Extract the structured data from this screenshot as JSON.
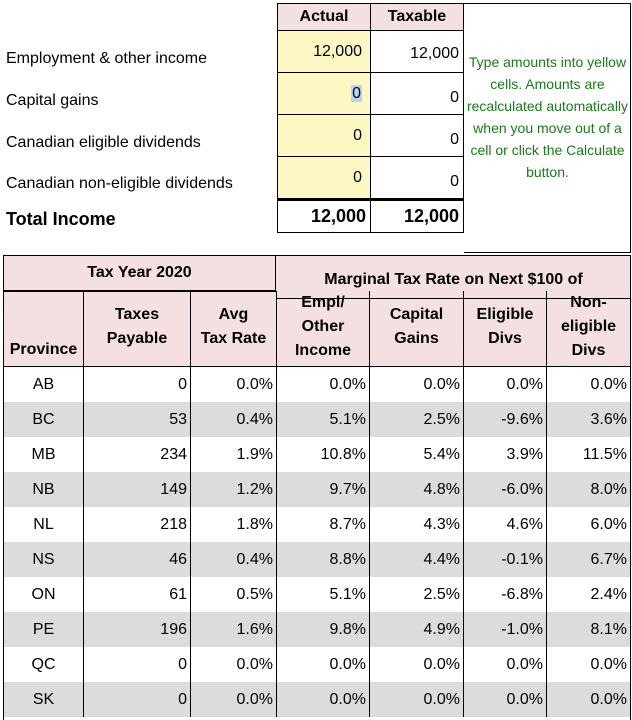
{
  "income": {
    "col_actual": "Actual",
    "col_taxable": "Taxable",
    "rows": [
      {
        "label": "Employment & other income",
        "actual": "12,000",
        "taxable": "12,000"
      },
      {
        "label": "Capital gains",
        "actual": "0",
        "taxable": "0"
      },
      {
        "label": "Canadian eligible dividends",
        "actual": "0",
        "taxable": "0"
      },
      {
        "label": "Canadian non-eligible dividends",
        "actual": "0",
        "taxable": "0"
      }
    ],
    "total_label": "Total Income",
    "total_actual": "12,000",
    "total_taxable": "12,000",
    "note": "Type amounts into yellow cells.  Amounts are recalculated automatically when you move out of a cell or click the Calculate button."
  },
  "table": {
    "tax_year": "Tax Year 2020",
    "marginal_header": "Marginal Tax Rate on Next $100 of",
    "columns": {
      "province": "Province",
      "taxes_payable_1": "Taxes",
      "taxes_payable_2": "Payable",
      "avg_rate_1": "Avg",
      "avg_rate_2": "Tax Rate",
      "empl_1": "Empl/",
      "empl_2": "Other",
      "empl_3": "Income",
      "capgains_1": "Capital",
      "capgains_2": "Gains",
      "elig_1": "Eligible",
      "elig_2": "Divs",
      "nonelig_1": "Non-",
      "nonelig_2": "eligible",
      "nonelig_3": "Divs"
    },
    "rows": [
      {
        "province": "AB",
        "taxes": "0",
        "avg": "0.0%",
        "empl": "0.0%",
        "cap": "0.0%",
        "elig": "0.0%",
        "nonelig": "0.0%"
      },
      {
        "province": "BC",
        "taxes": "53",
        "avg": "0.4%",
        "empl": "5.1%",
        "cap": "2.5%",
        "elig": "-9.6%",
        "nonelig": "3.6%"
      },
      {
        "province": "MB",
        "taxes": "234",
        "avg": "1.9%",
        "empl": "10.8%",
        "cap": "5.4%",
        "elig": "3.9%",
        "nonelig": "11.5%"
      },
      {
        "province": "NB",
        "taxes": "149",
        "avg": "1.2%",
        "empl": "9.7%",
        "cap": "4.8%",
        "elig": "-6.0%",
        "nonelig": "8.0%"
      },
      {
        "province": "NL",
        "taxes": "218",
        "avg": "1.8%",
        "empl": "8.7%",
        "cap": "4.3%",
        "elig": "4.6%",
        "nonelig": "6.0%"
      },
      {
        "province": "NS",
        "taxes": "46",
        "avg": "0.4%",
        "empl": "8.8%",
        "cap": "4.4%",
        "elig": "-0.1%",
        "nonelig": "6.7%"
      },
      {
        "province": "ON",
        "taxes": "61",
        "avg": "0.5%",
        "empl": "5.1%",
        "cap": "2.5%",
        "elig": "-6.8%",
        "nonelig": "2.4%"
      },
      {
        "province": "PE",
        "taxes": "196",
        "avg": "1.6%",
        "empl": "9.8%",
        "cap": "4.9%",
        "elig": "-1.0%",
        "nonelig": "8.1%"
      },
      {
        "province": "QC",
        "taxes": "0",
        "avg": "0.0%",
        "empl": "0.0%",
        "cap": "0.0%",
        "elig": "0.0%",
        "nonelig": "0.0%"
      },
      {
        "province": "SK",
        "taxes": "0",
        "avg": "0.0%",
        "empl": "0.0%",
        "cap": "0.0%",
        "elig": "0.0%",
        "nonelig": "0.0%"
      }
    ]
  },
  "colors": {
    "header_bg": "#f4e0e0",
    "input_bg": "#fdf7c3",
    "stripe_bg": "#dcdcdc",
    "note_text": "#1b7a1b"
  }
}
